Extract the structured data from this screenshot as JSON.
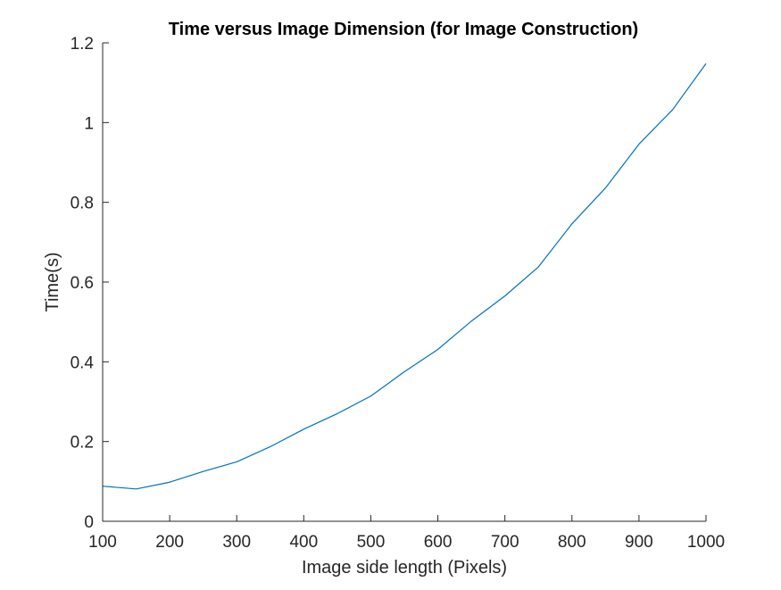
{
  "chart_data": {
    "type": "line",
    "title": "Time versus Image Dimension (for Image Construction)",
    "xlabel": "Image side length (Pixels)",
    "ylabel": "Time(s)",
    "xlim": [
      100,
      1000
    ],
    "ylim": [
      0,
      1.2
    ],
    "xticks": [
      100,
      200,
      300,
      400,
      500,
      600,
      700,
      800,
      900,
      1000
    ],
    "xtick_labels": [
      "100",
      "200",
      "300",
      "400",
      "500",
      "600",
      "700",
      "800",
      "900",
      "1000"
    ],
    "yticks": [
      0,
      0.2,
      0.4,
      0.6,
      0.8,
      1,
      1.2
    ],
    "ytick_labels": [
      "0",
      "0.2",
      "0.4",
      "0.6",
      "0.8",
      "1",
      "1.2"
    ],
    "grid": false,
    "series": [
      {
        "color": "#0072bd",
        "x": [
          100,
          150,
          200,
          250,
          300,
          350,
          400,
          450,
          500,
          550,
          600,
          650,
          700,
          750,
          800,
          850,
          900,
          950,
          1000
        ],
        "y": [
          0.088,
          0.081,
          0.098,
          0.125,
          0.149,
          0.187,
          0.231,
          0.27,
          0.314,
          0.375,
          0.431,
          0.502,
          0.565,
          0.638,
          0.746,
          0.836,
          0.946,
          1.032,
          1.148
        ]
      }
    ]
  }
}
